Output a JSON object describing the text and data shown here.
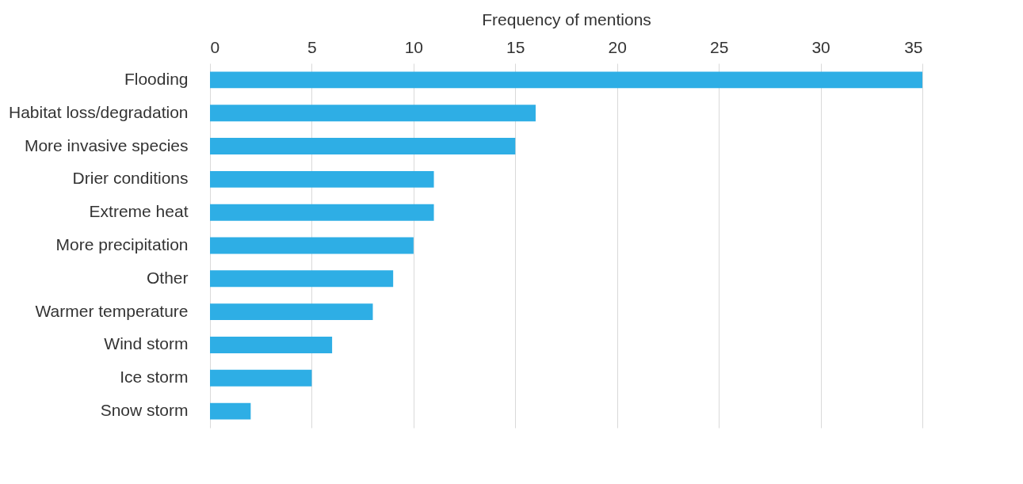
{
  "chart_data": {
    "type": "bar",
    "orientation": "horizontal",
    "xlabel": "Frequency of mentions",
    "categories": [
      "Flooding",
      "Habitat loss/degradation",
      "More invasive species",
      "Drier conditions",
      "Extreme heat",
      "More precipitation",
      "Other",
      "Warmer temperature",
      "Wind storm",
      "Ice storm",
      "Snow storm"
    ],
    "values": [
      35,
      16,
      15,
      11,
      11,
      10,
      9,
      8,
      6,
      5,
      2
    ],
    "color": "#2eaee5",
    "xlim": [
      0,
      35
    ],
    "xticks": [
      0,
      5,
      10,
      15,
      20,
      25,
      30,
      35
    ],
    "grid": "x"
  }
}
